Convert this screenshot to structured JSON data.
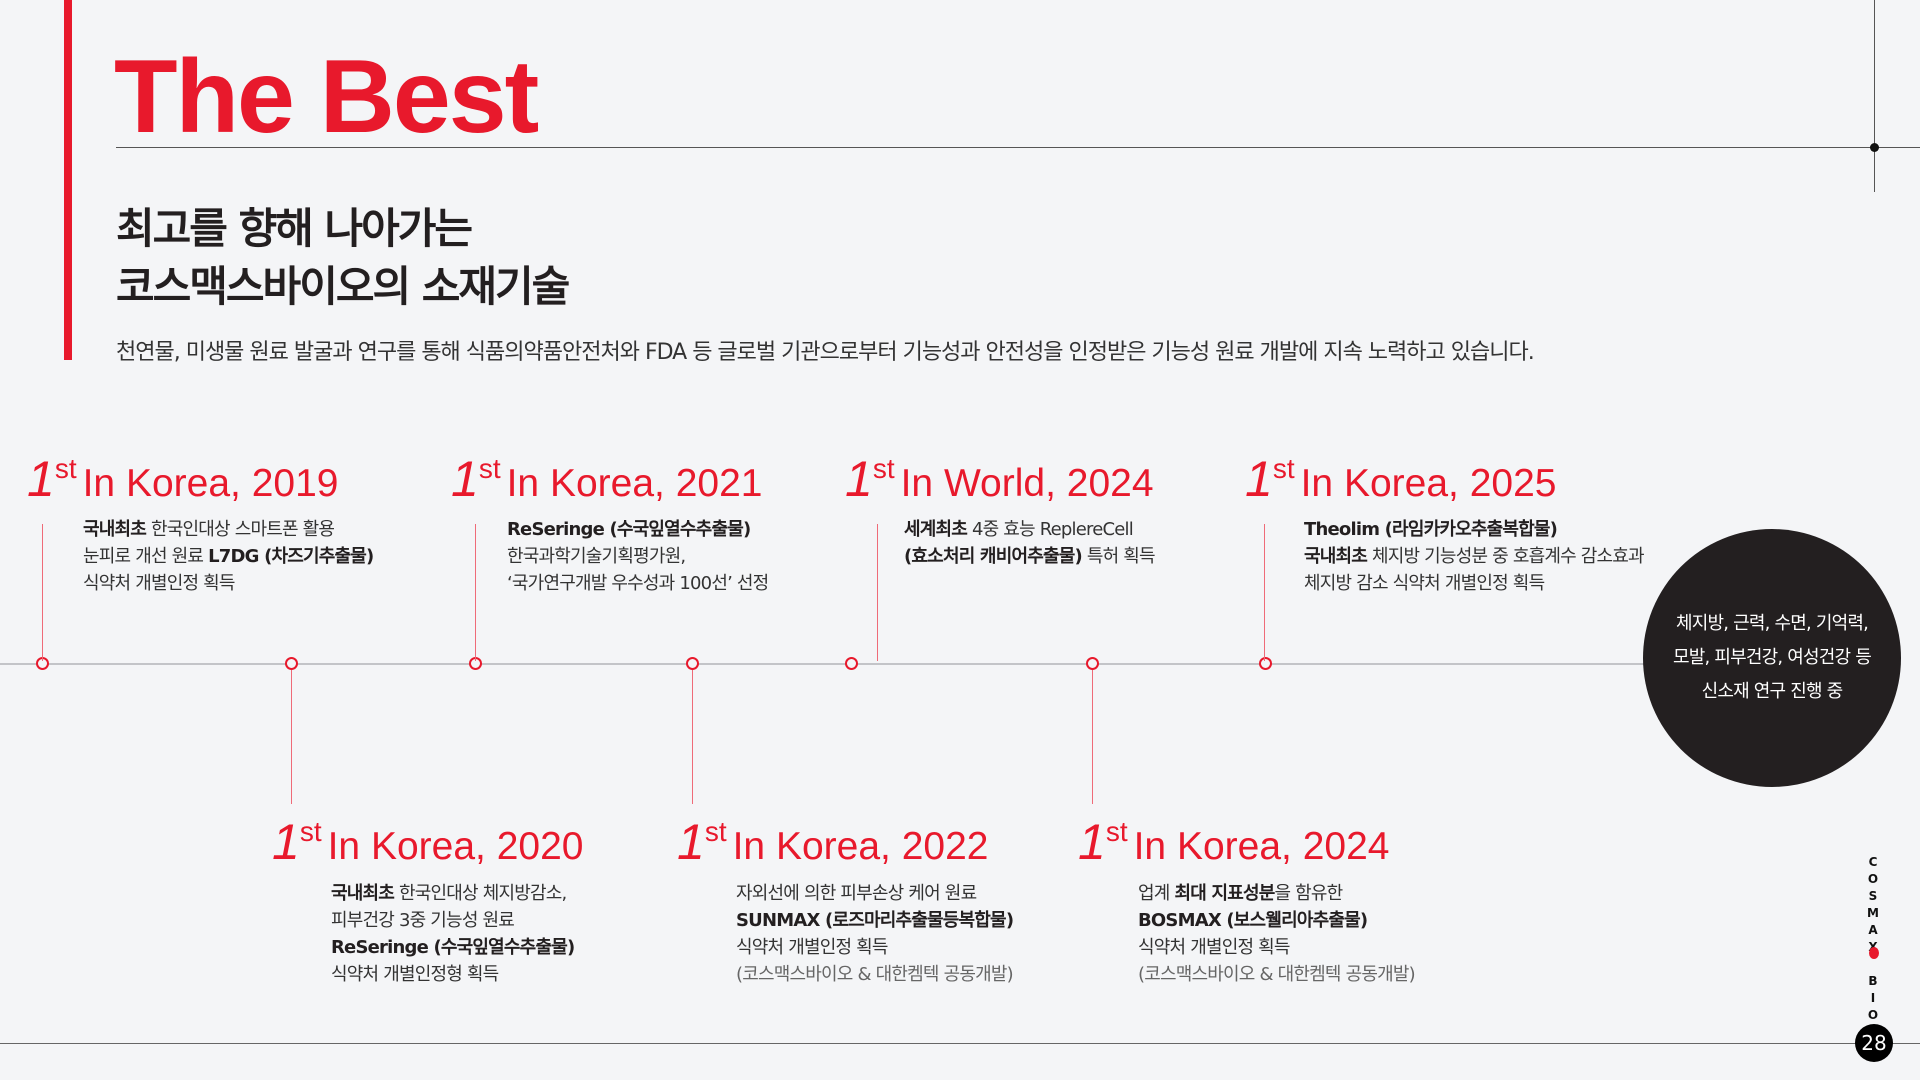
{
  "header": {
    "title": "The Best",
    "subtitle_lines": [
      "최고를 향해 나아가는",
      "코스맥스바이오의 소재기술"
    ],
    "description": "천연물, 미생물 원료 발굴과 연구를 통해 식품의약품안전처와 FDA 등 글로벌 기관으로부터 기능성과 안전성을 인정받은 기능성 원료 개발에 지속 노력하고 있습니다."
  },
  "colors": {
    "accent": "#e8192c",
    "dark": "#231f20",
    "background": "#f4f5f7"
  },
  "milestones": [
    {
      "rank": "1",
      "suffix": "st",
      "label": "In Korea, 2019",
      "lines": [
        {
          "bold": "국내최초",
          "text": " 한국인대상 스마트폰 활용"
        },
        {
          "text": "눈피로 개선 원료 ",
          "bold2": "L7DG (차즈기추출물)"
        },
        {
          "text": "식약처 개별인정 획득"
        }
      ]
    },
    {
      "rank": "1",
      "suffix": "st",
      "label": "In Korea, 2020",
      "lines": [
        {
          "bold": "국내최초",
          "text": " 한국인대상 체지방감소,"
        },
        {
          "text": "피부건강 3중 기능성 원료"
        },
        {
          "bold": "ReSeringe (수국잎열수추출물)"
        },
        {
          "text": "식약처 개별인정형 획득"
        }
      ]
    },
    {
      "rank": "1",
      "suffix": "st",
      "label": "In Korea, 2021",
      "lines": [
        {
          "bold": "ReSeringe (수국잎열수추출물)"
        },
        {
          "text": "한국과학기술기획평가원,"
        },
        {
          "text": "‘국가연구개발 우수성과 100선’ 선정"
        }
      ]
    },
    {
      "rank": "1",
      "suffix": "st",
      "label": "In Korea, 2022",
      "lines": [
        {
          "text": "자외선에 의한 피부손상 케어 원료"
        },
        {
          "bold": "SUNMAX (로즈마리추출물등복합물)"
        },
        {
          "text": "식약처 개별인정 획득"
        },
        {
          "note": "(코스맥스바이오 & 대한켐텍 공동개발)"
        }
      ]
    },
    {
      "rank": "1",
      "suffix": "st",
      "label": "In World, 2024",
      "lines": [
        {
          "bold": "세계최초",
          "text": " 4중 효능 ReplereCell"
        },
        {
          "bold": "(효소처리 캐비어추출물)",
          "text": " 특허 획득"
        }
      ]
    },
    {
      "rank": "1",
      "suffix": "st",
      "label": "In Korea, 2024",
      "lines": [
        {
          "text": "업계 ",
          "bold2": "최대 지표성분",
          "text2": "을 함유한"
        },
        {
          "bold": "BOSMAX (보스웰리아추출물)"
        },
        {
          "text": "식약처 개별인정 획득"
        },
        {
          "note": "(코스맥스바이오 & 대한켐텍 공동개발)"
        }
      ]
    },
    {
      "rank": "1",
      "suffix": "st",
      "label": "In Korea, 2025",
      "lines": [
        {
          "bold": "Theolim (라임카카오추출복합물)"
        },
        {
          "bold": "국내최초",
          "text": " 체지방 기능성분 중 호흡계수 감소효과"
        },
        {
          "text": "체지방 감소 식약처 개별인정 획득"
        }
      ]
    }
  ],
  "future": {
    "lines": [
      "체지방, 근력, 수면, 기억력,",
      "모발, 피부건강, 여성건강 등",
      "신소재 연구 진행 중"
    ]
  },
  "footer": {
    "brand": "COSMAX BIO",
    "page_number": "28"
  }
}
